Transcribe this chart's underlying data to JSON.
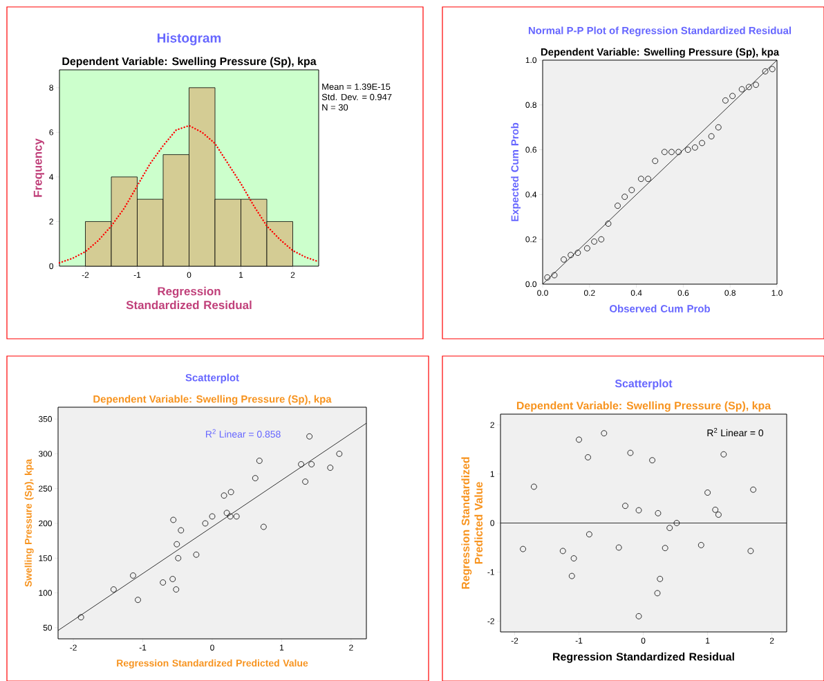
{
  "chart_data": [
    {
      "type": "histogram",
      "title": "Histogram",
      "subtitle": "Dependent Variable: Swelling Pressure (Sp), kpa",
      "xlabel": "Regression Standardized Residual",
      "ylabel": "Frequency",
      "bins": [
        -2,
        -1.5,
        -1,
        -0.5,
        0,
        0.5,
        1,
        1.5,
        2
      ],
      "values": [
        2,
        4,
        3,
        5,
        8,
        3,
        3,
        2
      ],
      "color": "#d4cc94",
      "xlim": [
        -2.5,
        2.5
      ],
      "ylim": [
        0,
        8.8
      ],
      "xticks": [
        -2,
        -1,
        0,
        1,
        2
      ],
      "yticks": [
        0,
        2,
        4,
        6,
        8
      ],
      "annotations": [
        "Mean = 1.39E-15",
        "Std. Dev. = 0.947",
        "N = 30"
      ],
      "series": [
        {
          "type": "line",
          "color": "#ff0000",
          "line_style": "dotted",
          "x": [
            -2.5,
            -2.25,
            -2,
            -1.75,
            -1.5,
            -1.25,
            -1,
            -0.75,
            -0.5,
            -0.25,
            0,
            0.25,
            0.5,
            0.75,
            1,
            1.25,
            1.5,
            1.75,
            2,
            2.25,
            2.5
          ],
          "values": [
            0.15,
            0.35,
            0.65,
            1.15,
            1.8,
            2.6,
            3.6,
            4.6,
            5.4,
            6.1,
            6.3,
            6.0,
            5.5,
            4.6,
            3.7,
            2.7,
            1.8,
            1.2,
            0.7,
            0.4,
            0.2
          ]
        }
      ]
    },
    {
      "type": "scatter",
      "title": "Normal P-P Plot of Regression Standardized Residual",
      "subtitle": "Dependent Variable: Swelling Pressure (Sp), kpa",
      "xlabel": "Observed Cum Prob",
      "ylabel": "Expected Cum Prob",
      "xlim": [
        0,
        1
      ],
      "ylim": [
        0,
        1
      ],
      "xticks": [
        {
          "value": 0,
          "label": "0.0"
        },
        {
          "value": 0.2,
          "label": "0.2"
        },
        {
          "value": 0.4,
          "label": "0.4"
        },
        {
          "value": 0.6,
          "label": "0.6"
        },
        {
          "value": 0.8,
          "label": "0.8"
        },
        {
          "value": 1,
          "label": "1.0"
        }
      ],
      "yticks": [
        {
          "value": 0,
          "label": "0.0"
        },
        {
          "value": 0.2,
          "label": "0.2"
        },
        {
          "value": 0.4,
          "label": "0.4"
        },
        {
          "value": 0.6,
          "label": "0.6"
        },
        {
          "value": 0.8,
          "label": "0.8"
        },
        {
          "value": 1,
          "label": "1.0"
        }
      ],
      "series": [
        {
          "color": "#000000",
          "marker": "circle",
          "x": [
            0.02,
            0.05,
            0.09,
            0.12,
            0.15,
            0.19,
            0.22,
            0.25,
            0.28,
            0.32,
            0.35,
            0.38,
            0.42,
            0.45,
            0.48,
            0.52,
            0.55,
            0.58,
            0.62,
            0.65,
            0.68,
            0.72,
            0.75,
            0.78,
            0.81,
            0.85,
            0.88,
            0.91,
            0.95,
            0.98
          ],
          "values": [
            0.03,
            0.04,
            0.11,
            0.13,
            0.14,
            0.16,
            0.19,
            0.2,
            0.27,
            0.35,
            0.39,
            0.42,
            0.47,
            0.47,
            0.55,
            0.59,
            0.59,
            0.59,
            0.6,
            0.61,
            0.63,
            0.66,
            0.7,
            0.82,
            0.84,
            0.87,
            0.88,
            0.89,
            0.95,
            0.96
          ]
        },
        {
          "type": "line",
          "color": "#000000",
          "x": [
            0,
            1
          ],
          "values": [
            0,
            1
          ]
        }
      ]
    },
    {
      "type": "scatter",
      "title": "Scatterplot",
      "subtitle": "Dependent Variable: Swelling Pressure (Sp), kpa",
      "xlabel": "Regression Standardized Predicted Value",
      "ylabel": "Swelling Pressure (Sp), kpa",
      "xlim": [
        -2.22,
        2.22
      ],
      "ylim": [
        34,
        367
      ],
      "xticks": [
        -2,
        -1,
        0,
        1,
        2
      ],
      "yticks": [
        50,
        100,
        150,
        200,
        250,
        300,
        350
      ],
      "annotations": [
        "R$^{2}$ Linear = 0.858"
      ],
      "series": [
        {
          "color": "#000000",
          "marker": "circle",
          "x": [
            -1.89,
            -1.42,
            -1.14,
            -1.07,
            -0.71,
            -0.56,
            -0.57,
            -0.52,
            -0.51,
            -0.49,
            -0.45,
            -0.23,
            -0.1,
            0.0,
            0.17,
            0.21,
            0.26,
            0.27,
            0.35,
            0.62,
            0.68,
            0.74,
            1.28,
            1.34,
            1.4,
            1.43,
            1.7,
            1.83
          ],
          "values": [
            65,
            105,
            125,
            90,
            115,
            205,
            120,
            105,
            170,
            150,
            190,
            155,
            200,
            210,
            240,
            215,
            210,
            245,
            210,
            265,
            290,
            195,
            285,
            260,
            325,
            285,
            280,
            300
          ]
        },
        {
          "type": "line",
          "color": "#000000",
          "x": [
            -2.22,
            2.22
          ],
          "values": [
            46,
            344
          ]
        }
      ]
    },
    {
      "type": "scatter",
      "title": "Scatterplot",
      "subtitle": "Dependent Variable: Swelling Pressure (Sp), kpa",
      "xlabel": "Regression Standardized Residual",
      "ylabel": "Regression Standardized Predicted Value",
      "xlim": [
        -2.22,
        2.23
      ],
      "ylim": [
        -2.22,
        2.22
      ],
      "xticks": [
        -2,
        -1,
        0,
        1,
        2
      ],
      "yticks": [
        -2,
        -1,
        0,
        1,
        2
      ],
      "annotations": [
        "R$^{2}$ Linear = 0"
      ],
      "series": [
        {
          "color": "#000000",
          "marker": "circle",
          "x": [
            -1.87,
            -1.7,
            -1.25,
            -1.08,
            -1.11,
            -1.0,
            -0.86,
            -0.84,
            -0.61,
            -0.38,
            -0.28,
            -0.2,
            -0.07,
            -0.07,
            0.14,
            0.23,
            0.22,
            0.26,
            0.34,
            0.41,
            0.52,
            0.9,
            1.0,
            1.12,
            1.17,
            1.25,
            1.67,
            1.71
          ],
          "values": [
            -0.53,
            0.74,
            -0.57,
            -0.72,
            -1.08,
            1.7,
            1.34,
            -0.23,
            1.83,
            -0.5,
            0.35,
            1.43,
            0.26,
            -1.9,
            1.28,
            0.2,
            -1.43,
            -1.14,
            -0.51,
            -0.1,
            0.0,
            -0.45,
            0.62,
            0.27,
            0.17,
            1.4,
            -0.57,
            0.68
          ]
        },
        {
          "type": "line",
          "color": "#000000",
          "x": [
            -2.22,
            2.23
          ],
          "values": [
            0,
            0
          ]
        }
      ]
    }
  ]
}
